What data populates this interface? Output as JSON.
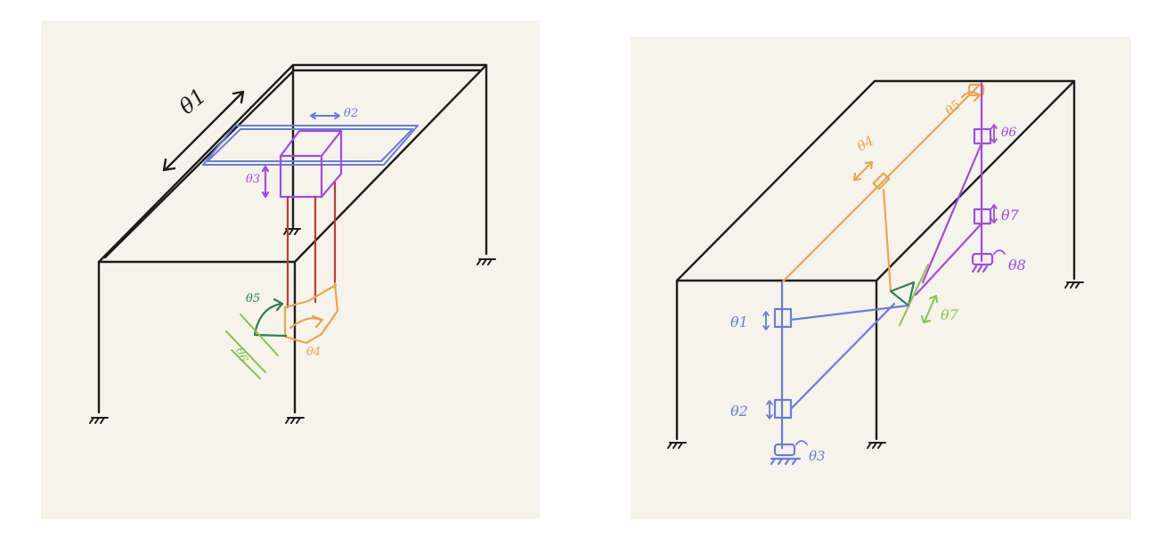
{
  "colors": {
    "background": "#f6f3ea",
    "frame": "#1d1d1d",
    "blue": "#6b7bdf",
    "purple": "#a24be3",
    "red": "#c0393b",
    "orange": "#e9a650",
    "dark_green": "#2f7f55",
    "light_green": "#8bc34a"
  },
  "left_diagram": {
    "labels": {
      "theta1": "θ1",
      "theta2": "θ2",
      "theta3": "θ3",
      "theta4": "θ4",
      "theta5": "θ5",
      "theta6": "θ6"
    }
  },
  "right_diagram": {
    "labels": {
      "theta1": "θ1",
      "theta2": "θ2",
      "theta3": "θ3",
      "theta4": "θ4",
      "theta5": "θ5",
      "theta6": "θ6",
      "theta7a": "θ7",
      "theta7b": "θ7",
      "theta8": "θ8"
    }
  }
}
